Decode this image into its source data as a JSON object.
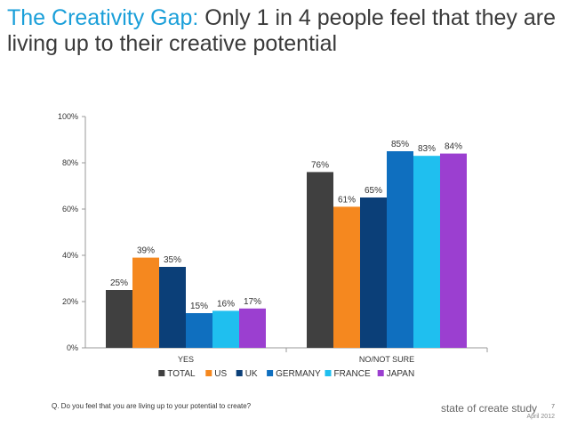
{
  "title": {
    "accent": "The Creativity Gap:",
    "rest": " Only 1 in 4 people feel that they are living up to their creative potential"
  },
  "chart_data": {
    "type": "bar",
    "title": "",
    "xlabel": "",
    "ylabel": "",
    "ylim": [
      0,
      100
    ],
    "yticks": [
      "0%",
      "20%",
      "40%",
      "60%",
      "80%",
      "100%"
    ],
    "categories": [
      "YES",
      "NO/NOT SURE"
    ],
    "series": [
      {
        "name": "TOTAL",
        "color": "#404040",
        "values": [
          25,
          76
        ]
      },
      {
        "name": "US",
        "color": "#f5881f",
        "values": [
          39,
          61
        ]
      },
      {
        "name": "UK",
        "color": "#0b3f78",
        "values": [
          35,
          65
        ]
      },
      {
        "name": "GERMANY",
        "color": "#0f6fbf",
        "values": [
          15,
          85
        ]
      },
      {
        "name": "FRANCE",
        "color": "#1fbfef",
        "values": [
          16,
          83
        ]
      },
      {
        "name": "JAPAN",
        "color": "#9b3fd0",
        "values": [
          17,
          84
        ]
      }
    ],
    "value_suffix": "%",
    "legend_position": "bottom"
  },
  "footer": {
    "question": "Q. Do you feel that you are living up to your potential to create?",
    "brand": "state of create study",
    "date": "April 2012",
    "page": "7"
  }
}
